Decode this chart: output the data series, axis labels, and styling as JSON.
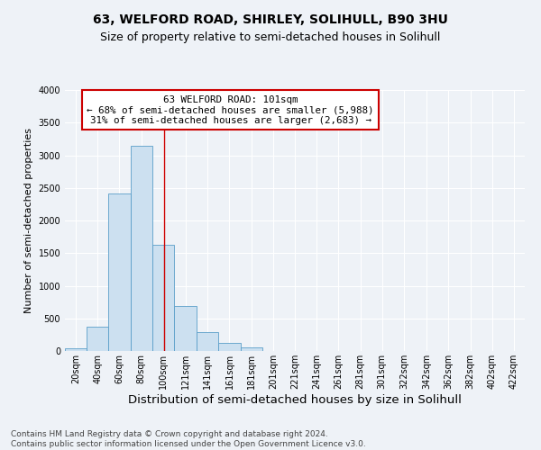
{
  "title": "63, WELFORD ROAD, SHIRLEY, SOLIHULL, B90 3HU",
  "subtitle": "Size of property relative to semi-detached houses in Solihull",
  "xlabel": "Distribution of semi-detached houses by size in Solihull",
  "ylabel": "Number of semi-detached properties",
  "bin_edges": [
    10,
    30,
    50,
    70,
    90,
    110,
    131,
    151,
    171,
    191,
    211,
    231,
    251,
    271,
    291,
    311,
    332,
    352,
    372,
    392,
    412,
    432
  ],
  "bin_labels": [
    "20sqm",
    "40sqm",
    "60sqm",
    "80sqm",
    "100sqm",
    "121sqm",
    "141sqm",
    "161sqm",
    "181sqm",
    "201sqm",
    "221sqm",
    "241sqm",
    "261sqm",
    "281sqm",
    "301sqm",
    "322sqm",
    "342sqm",
    "362sqm",
    "382sqm",
    "402sqm",
    "422sqm"
  ],
  "bar_heights": [
    40,
    375,
    2420,
    3140,
    1630,
    695,
    295,
    130,
    60,
    0,
    0,
    0,
    0,
    0,
    0,
    0,
    0,
    0,
    0,
    0,
    0
  ],
  "bar_color": "#cce0f0",
  "bar_edge_color": "#5a9ec9",
  "property_line_x": 101,
  "ylim": [
    0,
    4000
  ],
  "yticks": [
    0,
    500,
    1000,
    1500,
    2000,
    2500,
    3000,
    3500,
    4000
  ],
  "annotation_box_text_line1": "63 WELFORD ROAD: 101sqm",
  "annotation_box_text_line2": "← 68% of semi-detached houses are smaller (5,988)",
  "annotation_box_text_line3": "31% of semi-detached houses are larger (2,683) →",
  "annotation_box_color": "#ffffff",
  "annotation_box_edge_color": "#cc0000",
  "property_line_color": "#cc0000",
  "footer_line1": "Contains HM Land Registry data © Crown copyright and database right 2024.",
  "footer_line2": "Contains public sector information licensed under the Open Government Licence v3.0.",
  "bg_color": "#eef2f7",
  "grid_color": "#ffffff",
  "title_fontsize": 10,
  "subtitle_fontsize": 9,
  "xlabel_fontsize": 9.5,
  "ylabel_fontsize": 8,
  "tick_fontsize": 7,
  "footer_fontsize": 6.5,
  "ann_fontsize": 7.8
}
